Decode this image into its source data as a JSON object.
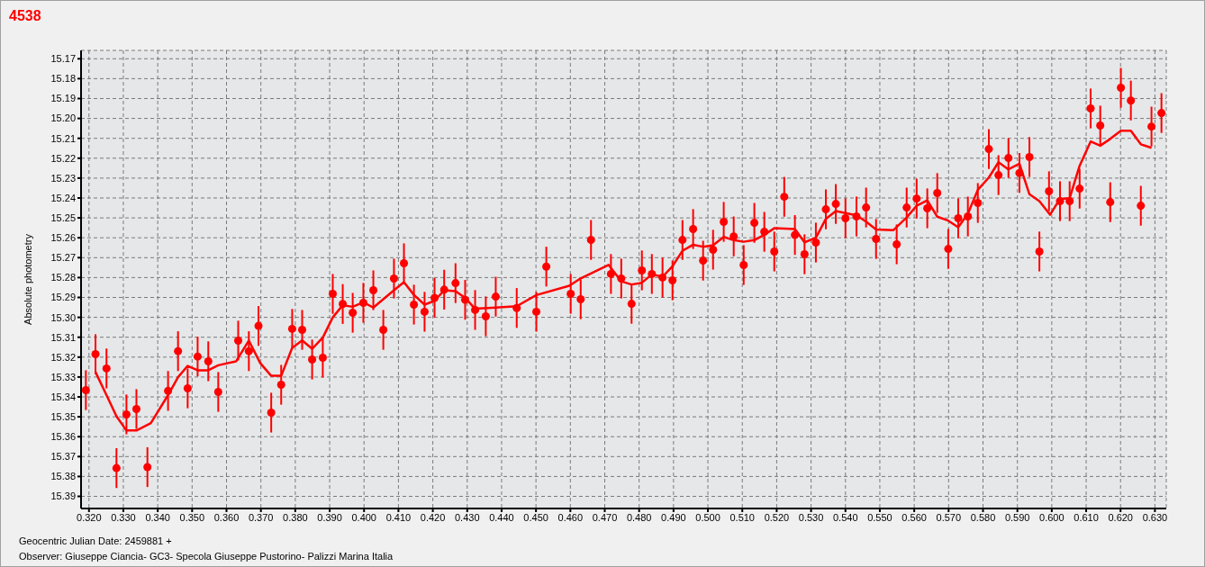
{
  "chart_data": {
    "type": "scatter",
    "title": "4538",
    "xlabel": "Geocentric Julian Date: 2459881 +",
    "ylabel": "Absolute photometry",
    "annotations": [
      "Observer: Giuseppe Ciancia- GC3- Specola Giuseppe Pustorino- Palizzi Marina Italia"
    ],
    "xlim": [
      0.3177,
      0.6333
    ],
    "ylim": [
      15.3961,
      15.1658
    ],
    "xticks": [
      {
        "value": 0.32,
        "label": "0.320"
      },
      {
        "value": 0.33,
        "label": "0.330"
      },
      {
        "value": 0.34,
        "label": "0.340"
      },
      {
        "value": 0.35,
        "label": "0.350"
      },
      {
        "value": 0.36,
        "label": "0.360"
      },
      {
        "value": 0.37,
        "label": "0.370"
      },
      {
        "value": 0.38,
        "label": "0.380"
      },
      {
        "value": 0.39,
        "label": "0.390"
      },
      {
        "value": 0.4,
        "label": "0.400"
      },
      {
        "value": 0.41,
        "label": "0.410"
      },
      {
        "value": 0.42,
        "label": "0.420"
      },
      {
        "value": 0.43,
        "label": "0.430"
      },
      {
        "value": 0.44,
        "label": "0.440"
      },
      {
        "value": 0.45,
        "label": "0.450"
      },
      {
        "value": 0.46,
        "label": "0.460"
      },
      {
        "value": 0.47,
        "label": "0.470"
      },
      {
        "value": 0.48,
        "label": "0.480"
      },
      {
        "value": 0.49,
        "label": "0.490"
      },
      {
        "value": 0.5,
        "label": "0.500"
      },
      {
        "value": 0.51,
        "label": "0.510"
      },
      {
        "value": 0.52,
        "label": "0.520"
      },
      {
        "value": 0.53,
        "label": "0.530"
      },
      {
        "value": 0.54,
        "label": "0.540"
      },
      {
        "value": 0.55,
        "label": "0.550"
      },
      {
        "value": 0.56,
        "label": "0.560"
      },
      {
        "value": 0.57,
        "label": "0.570"
      },
      {
        "value": 0.58,
        "label": "0.580"
      },
      {
        "value": 0.59,
        "label": "0.590"
      },
      {
        "value": 0.6,
        "label": "0.600"
      },
      {
        "value": 0.61,
        "label": "0.610"
      },
      {
        "value": 0.62,
        "label": "0.620"
      },
      {
        "value": 0.63,
        "label": "0.630"
      }
    ],
    "yticks": [
      15.17,
      15.18,
      15.19,
      {
        "value": 15.2,
        "label": "15.20"
      },
      15.21,
      15.22,
      15.23,
      15.24,
      15.25,
      15.26,
      15.27,
      15.28,
      15.29,
      {
        "value": 15.3,
        "label": "15.30"
      },
      15.31,
      15.32,
      15.33,
      15.34,
      15.35,
      15.36,
      15.37,
      15.38,
      15.39
    ],
    "grid": true,
    "legend": false,
    "marker": "circle",
    "series": [
      {
        "color": "#ff0000",
        "x": [
          0.3191,
          0.3219,
          0.3251,
          0.328,
          0.3309,
          0.3338,
          0.337,
          0.343,
          0.3459,
          0.3487,
          0.3516,
          0.3547,
          0.3576,
          0.3634,
          0.3665,
          0.3693,
          0.373,
          0.3759,
          0.3791,
          0.382,
          0.3849,
          0.388,
          0.3909,
          0.3938,
          0.3967,
          0.3998,
          0.4027,
          0.4056,
          0.4087,
          0.4116,
          0.4145,
          0.4176,
          0.4205,
          0.4233,
          0.4266,
          0.4294,
          0.4323,
          0.4354,
          0.4383,
          0.4444,
          0.4501,
          0.453,
          0.4601,
          0.463,
          0.466,
          0.4718,
          0.4748,
          0.4778,
          0.4808,
          0.4837,
          0.4868,
          0.4897,
          0.4926,
          0.4957,
          0.4986,
          0.5015,
          0.5046,
          0.5075,
          0.5104,
          0.5135,
          0.5164,
          0.5193,
          0.5222,
          0.5253,
          0.5281,
          0.5314,
          0.5343,
          0.5372,
          0.54,
          0.5432,
          0.546,
          0.5489,
          0.5549,
          0.5578,
          0.5607,
          0.5638,
          0.5667,
          0.5699,
          0.5728,
          0.5756,
          0.5785,
          0.5817,
          0.5845,
          0.5874,
          0.5906,
          0.5935,
          0.5964,
          0.5992,
          0.6024,
          0.6052,
          0.6081,
          0.6113,
          0.6141,
          0.617,
          0.6201,
          0.623,
          0.6259,
          0.629,
          0.6319
        ],
        "values": [
          15.3366,
          15.3185,
          15.3257,
          15.3758,
          15.3488,
          15.3461,
          15.3753,
          15.337,
          15.317,
          15.3357,
          15.3197,
          15.3221,
          15.3375,
          15.3117,
          15.317,
          15.3043,
          15.3479,
          15.3339,
          15.3058,
          15.3063,
          15.3212,
          15.3203,
          15.2882,
          15.2933,
          15.2977,
          15.2927,
          15.2864,
          15.3063,
          15.2805,
          15.2728,
          15.2936,
          15.2972,
          15.2902,
          15.2861,
          15.2828,
          15.2912,
          15.2963,
          15.2995,
          15.2896,
          15.2953,
          15.2972,
          15.2745,
          15.2882,
          15.2909,
          15.2611,
          15.2782,
          15.2805,
          15.2932,
          15.2764,
          15.2782,
          15.28,
          15.2814,
          15.2611,
          15.2556,
          15.2715,
          15.266,
          15.252,
          15.2593,
          15.2737,
          15.2525,
          15.257,
          15.2669,
          15.2394,
          15.2586,
          15.2683,
          15.2624,
          15.2457,
          15.243,
          15.2502,
          15.2493,
          15.2448,
          15.2606,
          15.2633,
          15.2448,
          15.2403,
          15.2452,
          15.2375,
          15.2656,
          15.2502,
          15.2493,
          15.2425,
          15.2154,
          15.2285,
          15.2199,
          15.2274,
          15.2194,
          15.2669,
          15.2366,
          15.2416,
          15.2416,
          15.2353,
          15.195,
          15.2036,
          15.2421,
          15.1846,
          15.191,
          15.2439,
          15.2041,
          15.1973
        ],
        "errors": [
          0.01,
          0.01,
          0.01,
          0.01,
          0.01,
          0.01,
          0.01,
          0.01,
          0.01,
          0.01,
          0.01,
          0.01,
          0.01,
          0.01,
          0.01,
          0.01,
          0.01,
          0.01,
          0.01,
          0.01,
          0.01,
          0.01,
          0.01,
          0.01,
          0.01,
          0.01,
          0.01,
          0.01,
          0.01,
          0.01,
          0.01,
          0.01,
          0.01,
          0.01,
          0.01,
          0.01,
          0.01,
          0.01,
          0.01,
          0.01,
          0.01,
          0.01,
          0.01,
          0.01,
          0.01,
          0.01,
          0.01,
          0.01,
          0.01,
          0.01,
          0.01,
          0.01,
          0.01,
          0.01,
          0.01,
          0.01,
          0.01,
          0.01,
          0.01,
          0.01,
          0.01,
          0.01,
          0.01,
          0.01,
          0.01,
          0.01,
          0.01,
          0.01,
          0.01,
          0.01,
          0.01,
          0.01,
          0.01,
          0.01,
          0.01,
          0.01,
          0.01,
          0.01,
          0.01,
          0.01,
          0.01,
          0.01,
          0.01,
          0.01,
          0.01,
          0.01,
          0.01,
          0.01,
          0.01,
          0.01,
          0.01,
          0.01,
          0.01,
          0.01,
          0.01,
          0.01,
          0.01,
          0.01,
          0.01
        ]
      },
      {
        "type": "line",
        "color": "#ff0000",
        "marker": "none",
        "line_style": "solid",
        "x": [
          0.3219,
          0.3251,
          0.328,
          0.3309,
          0.3338,
          0.338,
          0.343,
          0.3459,
          0.3487,
          0.3516,
          0.3547,
          0.3576,
          0.3628,
          0.3665,
          0.3698,
          0.373,
          0.3759,
          0.3791,
          0.382,
          0.3849,
          0.388,
          0.3909,
          0.3938,
          0.3967,
          0.3998,
          0.4027,
          0.4087,
          0.4116,
          0.4145,
          0.4176,
          0.4205,
          0.4233,
          0.4266,
          0.4294,
          0.4323,
          0.4383,
          0.4444,
          0.4501,
          0.4597,
          0.463,
          0.4711,
          0.4748,
          0.4778,
          0.4808,
          0.4837,
          0.4868,
          0.4897,
          0.4926,
          0.4957,
          0.4986,
          0.5015,
          0.5046,
          0.5075,
          0.5104,
          0.5135,
          0.5164,
          0.5193,
          0.5253,
          0.5281,
          0.5314,
          0.5343,
          0.5372,
          0.54,
          0.5432,
          0.546,
          0.5489,
          0.5539,
          0.5578,
          0.5607,
          0.5638,
          0.5667,
          0.5699,
          0.5728,
          0.5756,
          0.5785,
          0.5817,
          0.5845,
          0.5874,
          0.5906,
          0.5935,
          0.5964,
          0.5995,
          0.6024,
          0.6052,
          0.6081,
          0.6113,
          0.6141,
          0.617,
          0.6201,
          0.623,
          0.6259,
          0.629
        ],
        "values": [
          15.3275,
          15.3391,
          15.3497,
          15.3569,
          15.3569,
          15.3532,
          15.3391,
          15.3301,
          15.3244,
          15.3266,
          15.3266,
          15.3241,
          15.3221,
          15.3117,
          15.323,
          15.3294,
          15.3294,
          15.3153,
          15.3116,
          15.3158,
          15.3102,
          15.3,
          15.2939,
          15.2947,
          15.2924,
          15.2951,
          15.2864,
          15.2823,
          15.2887,
          15.2936,
          15.2917,
          15.2864,
          15.2868,
          15.2902,
          15.2957,
          15.2951,
          15.2944,
          15.2888,
          15.2841,
          15.2804,
          15.2736,
          15.2819,
          15.2835,
          15.2826,
          15.2784,
          15.2796,
          15.2743,
          15.2665,
          15.2635,
          15.2645,
          15.2638,
          15.2596,
          15.2612,
          15.262,
          15.2612,
          15.2585,
          15.2552,
          15.2556,
          15.2623,
          15.26,
          15.2505,
          15.2466,
          15.2476,
          15.2487,
          15.2519,
          15.2558,
          15.2562,
          15.2498,
          15.2439,
          15.2412,
          15.2494,
          15.2514,
          15.2547,
          15.2479,
          15.2359,
          15.2297,
          15.222,
          15.2256,
          15.2228,
          15.2381,
          15.2416,
          15.2484,
          15.2404,
          15.2401,
          15.2238,
          15.2116,
          15.2137,
          15.2103,
          15.2062,
          15.2062,
          15.213,
          15.2148
        ]
      }
    ]
  }
}
